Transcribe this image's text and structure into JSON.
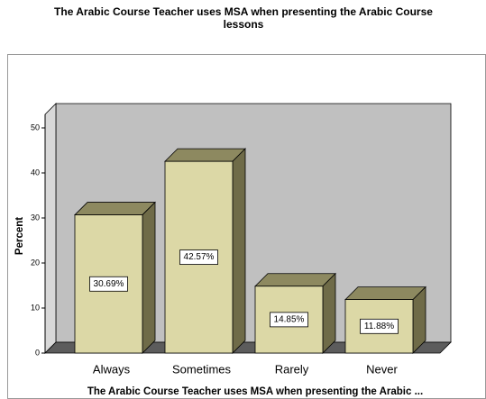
{
  "chart_data": {
    "type": "bar3d",
    "title": [
      "The Arabic Course Teacher uses MSA when presenting the Arabic Course",
      "lessons"
    ],
    "x_label": "The Arabic Course Teacher uses MSA when presenting the Arabic ...",
    "y_label": "Percent",
    "categories": [
      "Always",
      "Sometimes",
      "Rarely",
      "Never"
    ],
    "values": [
      30.69,
      42.57,
      14.85,
      11.88
    ],
    "value_labels": [
      "30.69%",
      "42.57%",
      "14.85%",
      "11.88%"
    ],
    "color": "#dcd8a6",
    "ylim": [
      0,
      53
    ],
    "yticks": [
      0,
      10,
      20,
      30,
      40,
      50
    ]
  }
}
